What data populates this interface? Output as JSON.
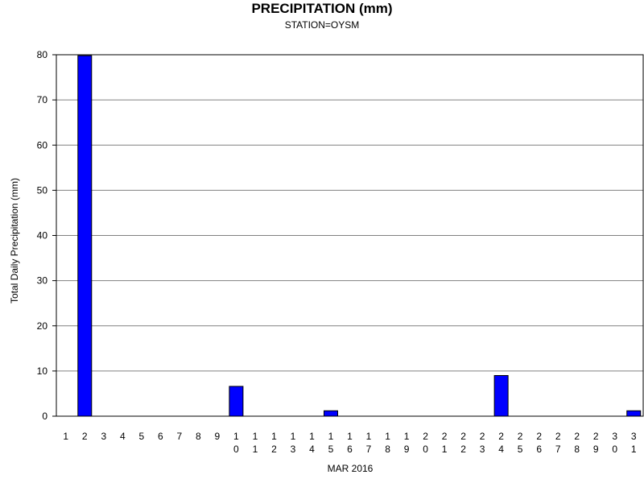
{
  "chart_data": {
    "type": "bar",
    "title": "PRECIPITATION (mm)",
    "subtitle": "STATION=OYSM",
    "xlabel": "MAR 2016",
    "ylabel": "Total Daily Precipitation (mm)",
    "categories": [
      "1",
      "2",
      "3",
      "4",
      "5",
      "6",
      "7",
      "8",
      "9",
      "10",
      "11",
      "12",
      "13",
      "14",
      "15",
      "16",
      "17",
      "18",
      "19",
      "20",
      "21",
      "22",
      "23",
      "24",
      "25",
      "26",
      "27",
      "28",
      "29",
      "30",
      "31"
    ],
    "values": [
      0,
      79.8,
      0,
      0,
      0,
      0,
      0,
      0,
      0,
      6.6,
      0,
      0,
      0,
      0,
      1.2,
      0,
      0,
      0,
      0,
      0,
      0,
      0,
      0,
      9.0,
      0,
      0,
      0,
      0,
      0,
      0,
      1.2
    ],
    "ylim": [
      0,
      80
    ],
    "yticks": [
      0,
      10,
      20,
      30,
      40,
      50,
      60,
      70,
      80
    ],
    "grid": true,
    "bar_color": "#0000ff",
    "grid_color": "#808080"
  }
}
